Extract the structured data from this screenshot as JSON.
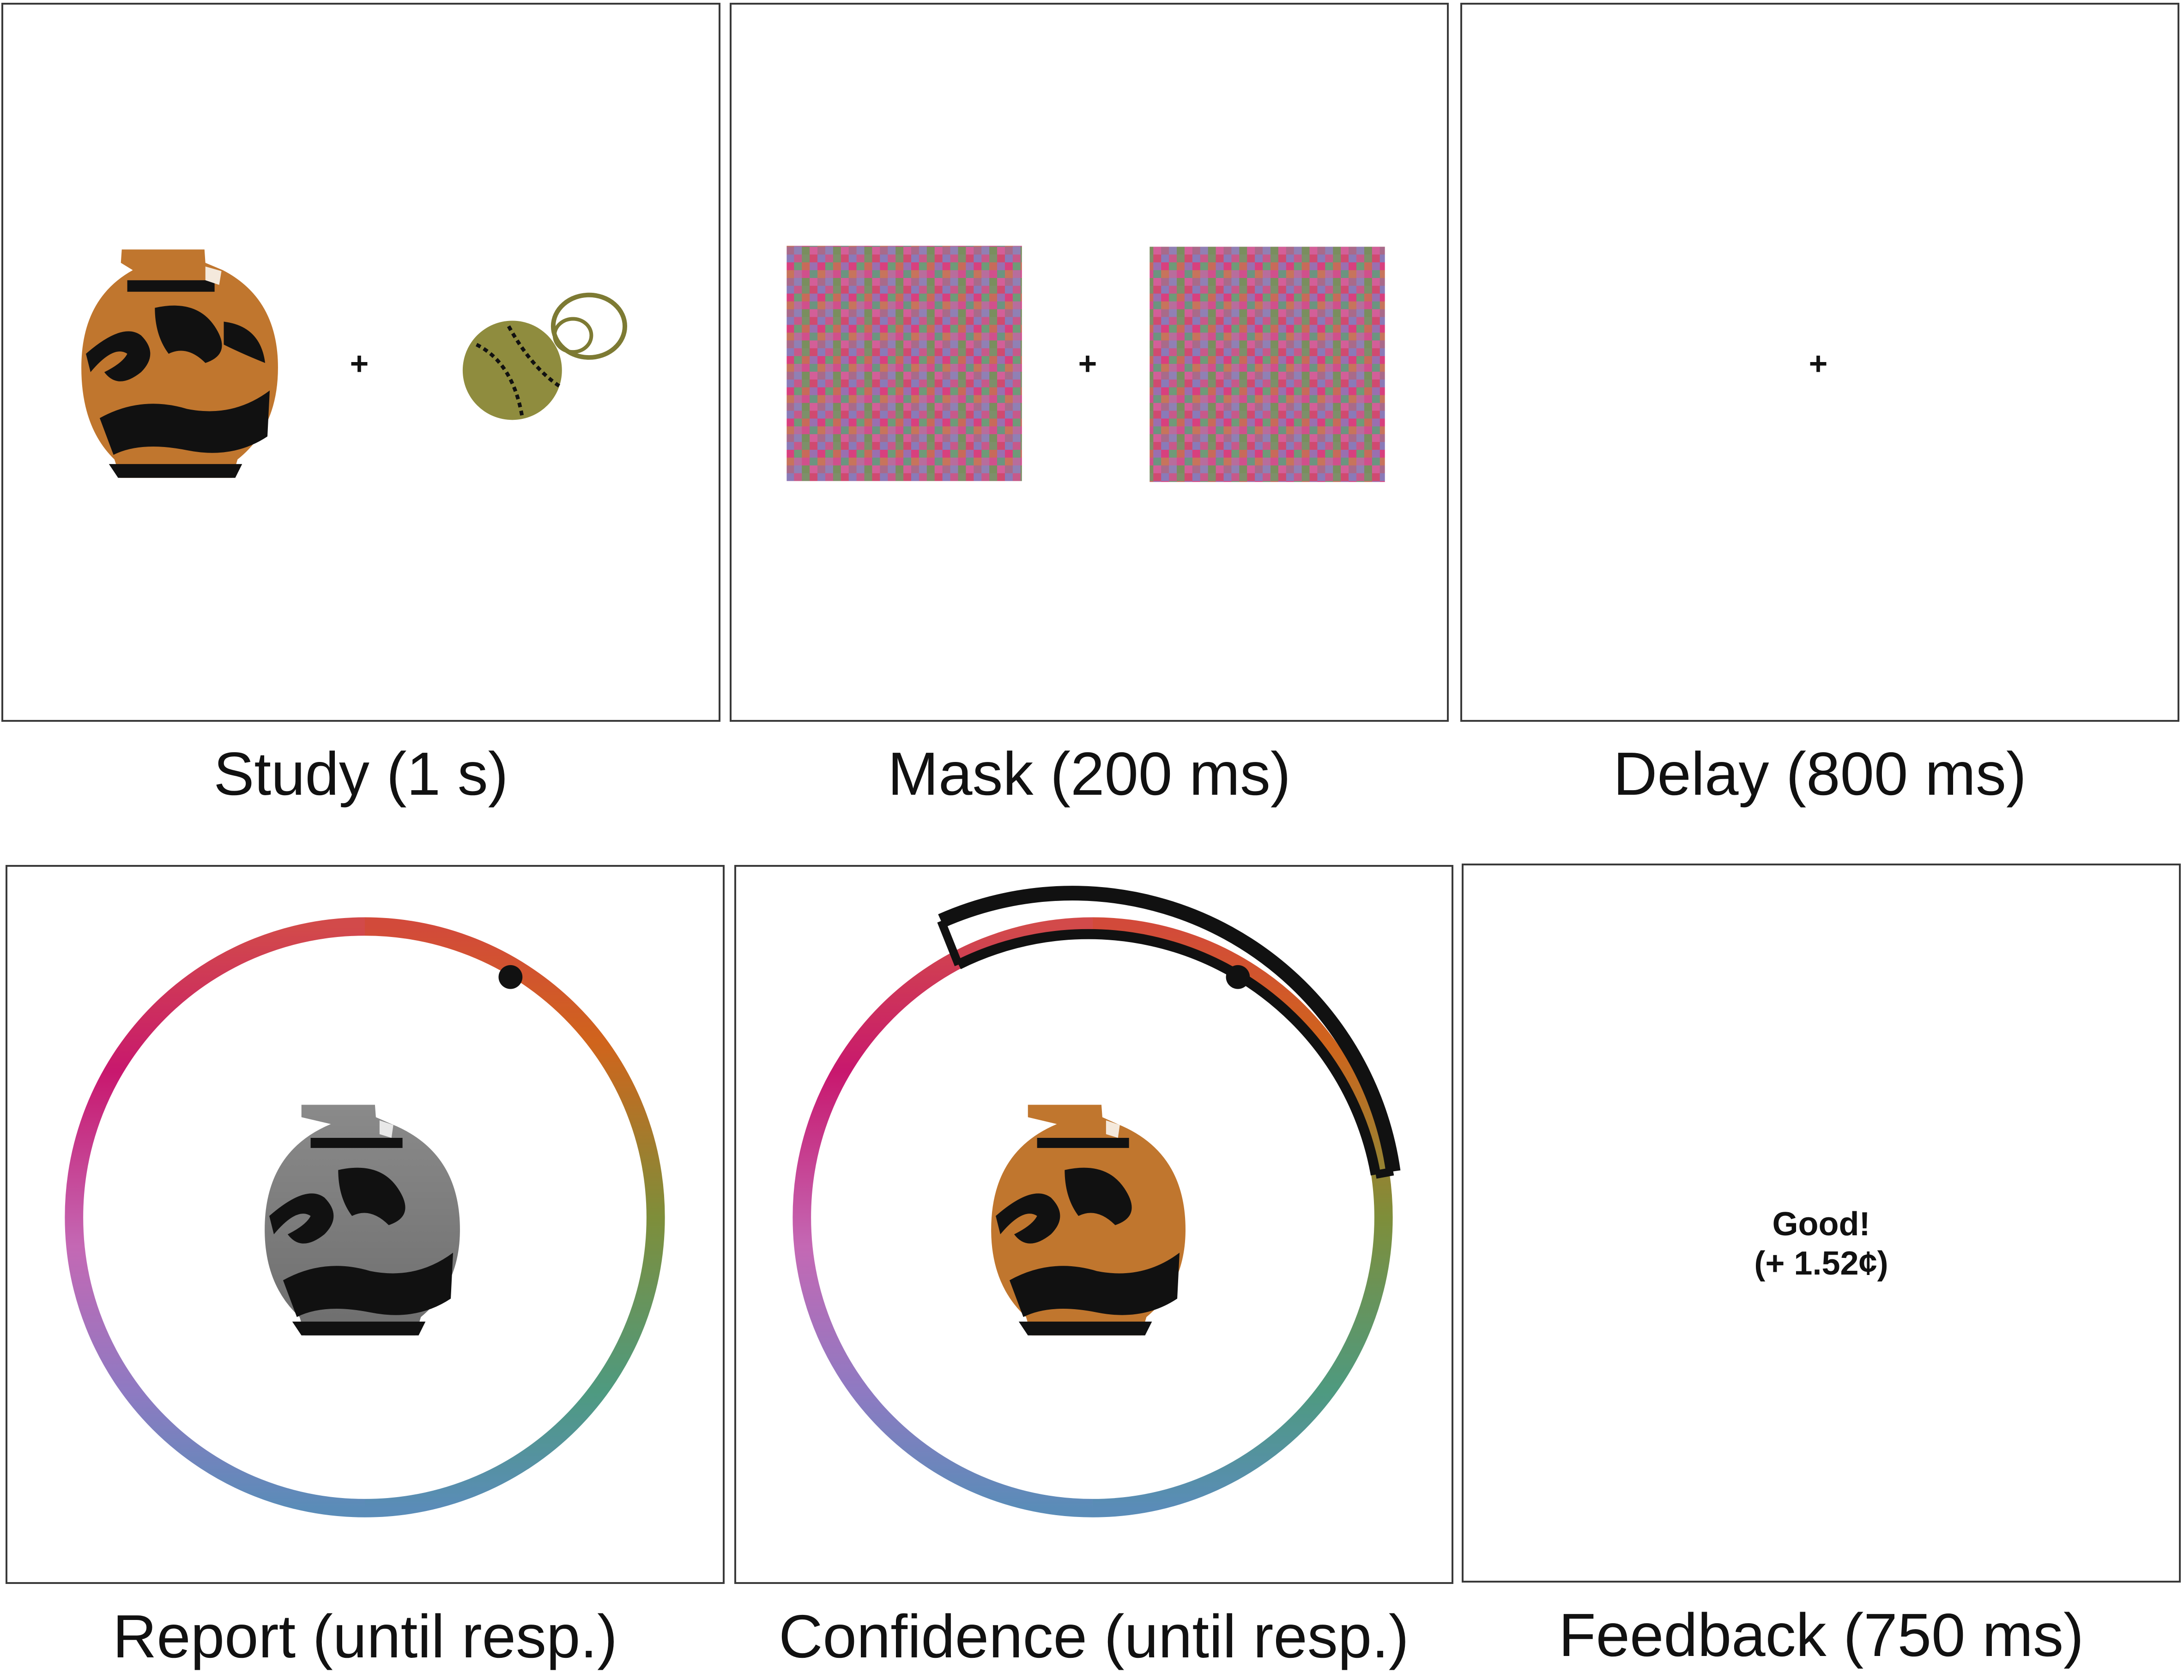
{
  "panels": [
    {
      "id": "study",
      "caption": "Study (1 s)",
      "fixation": "+"
    },
    {
      "id": "mask",
      "caption": "Mask (200 ms)",
      "fixation": "+"
    },
    {
      "id": "delay",
      "caption": "Delay (800 ms)",
      "fixation": "+"
    },
    {
      "id": "report",
      "caption": "Report (until resp.)"
    },
    {
      "id": "confidence",
      "caption": "Confidence (until resp.)"
    },
    {
      "id": "feedback",
      "caption": "Feedback (750 ms)",
      "feedback_line1": "Good!",
      "feedback_line2": "(+ 1.52¢)"
    }
  ],
  "colors": {
    "vase_orange": "#c0762e",
    "vase_gray": "#8a8a8a",
    "ball_olive": "#8f8c3e",
    "ink": "#111111"
  }
}
